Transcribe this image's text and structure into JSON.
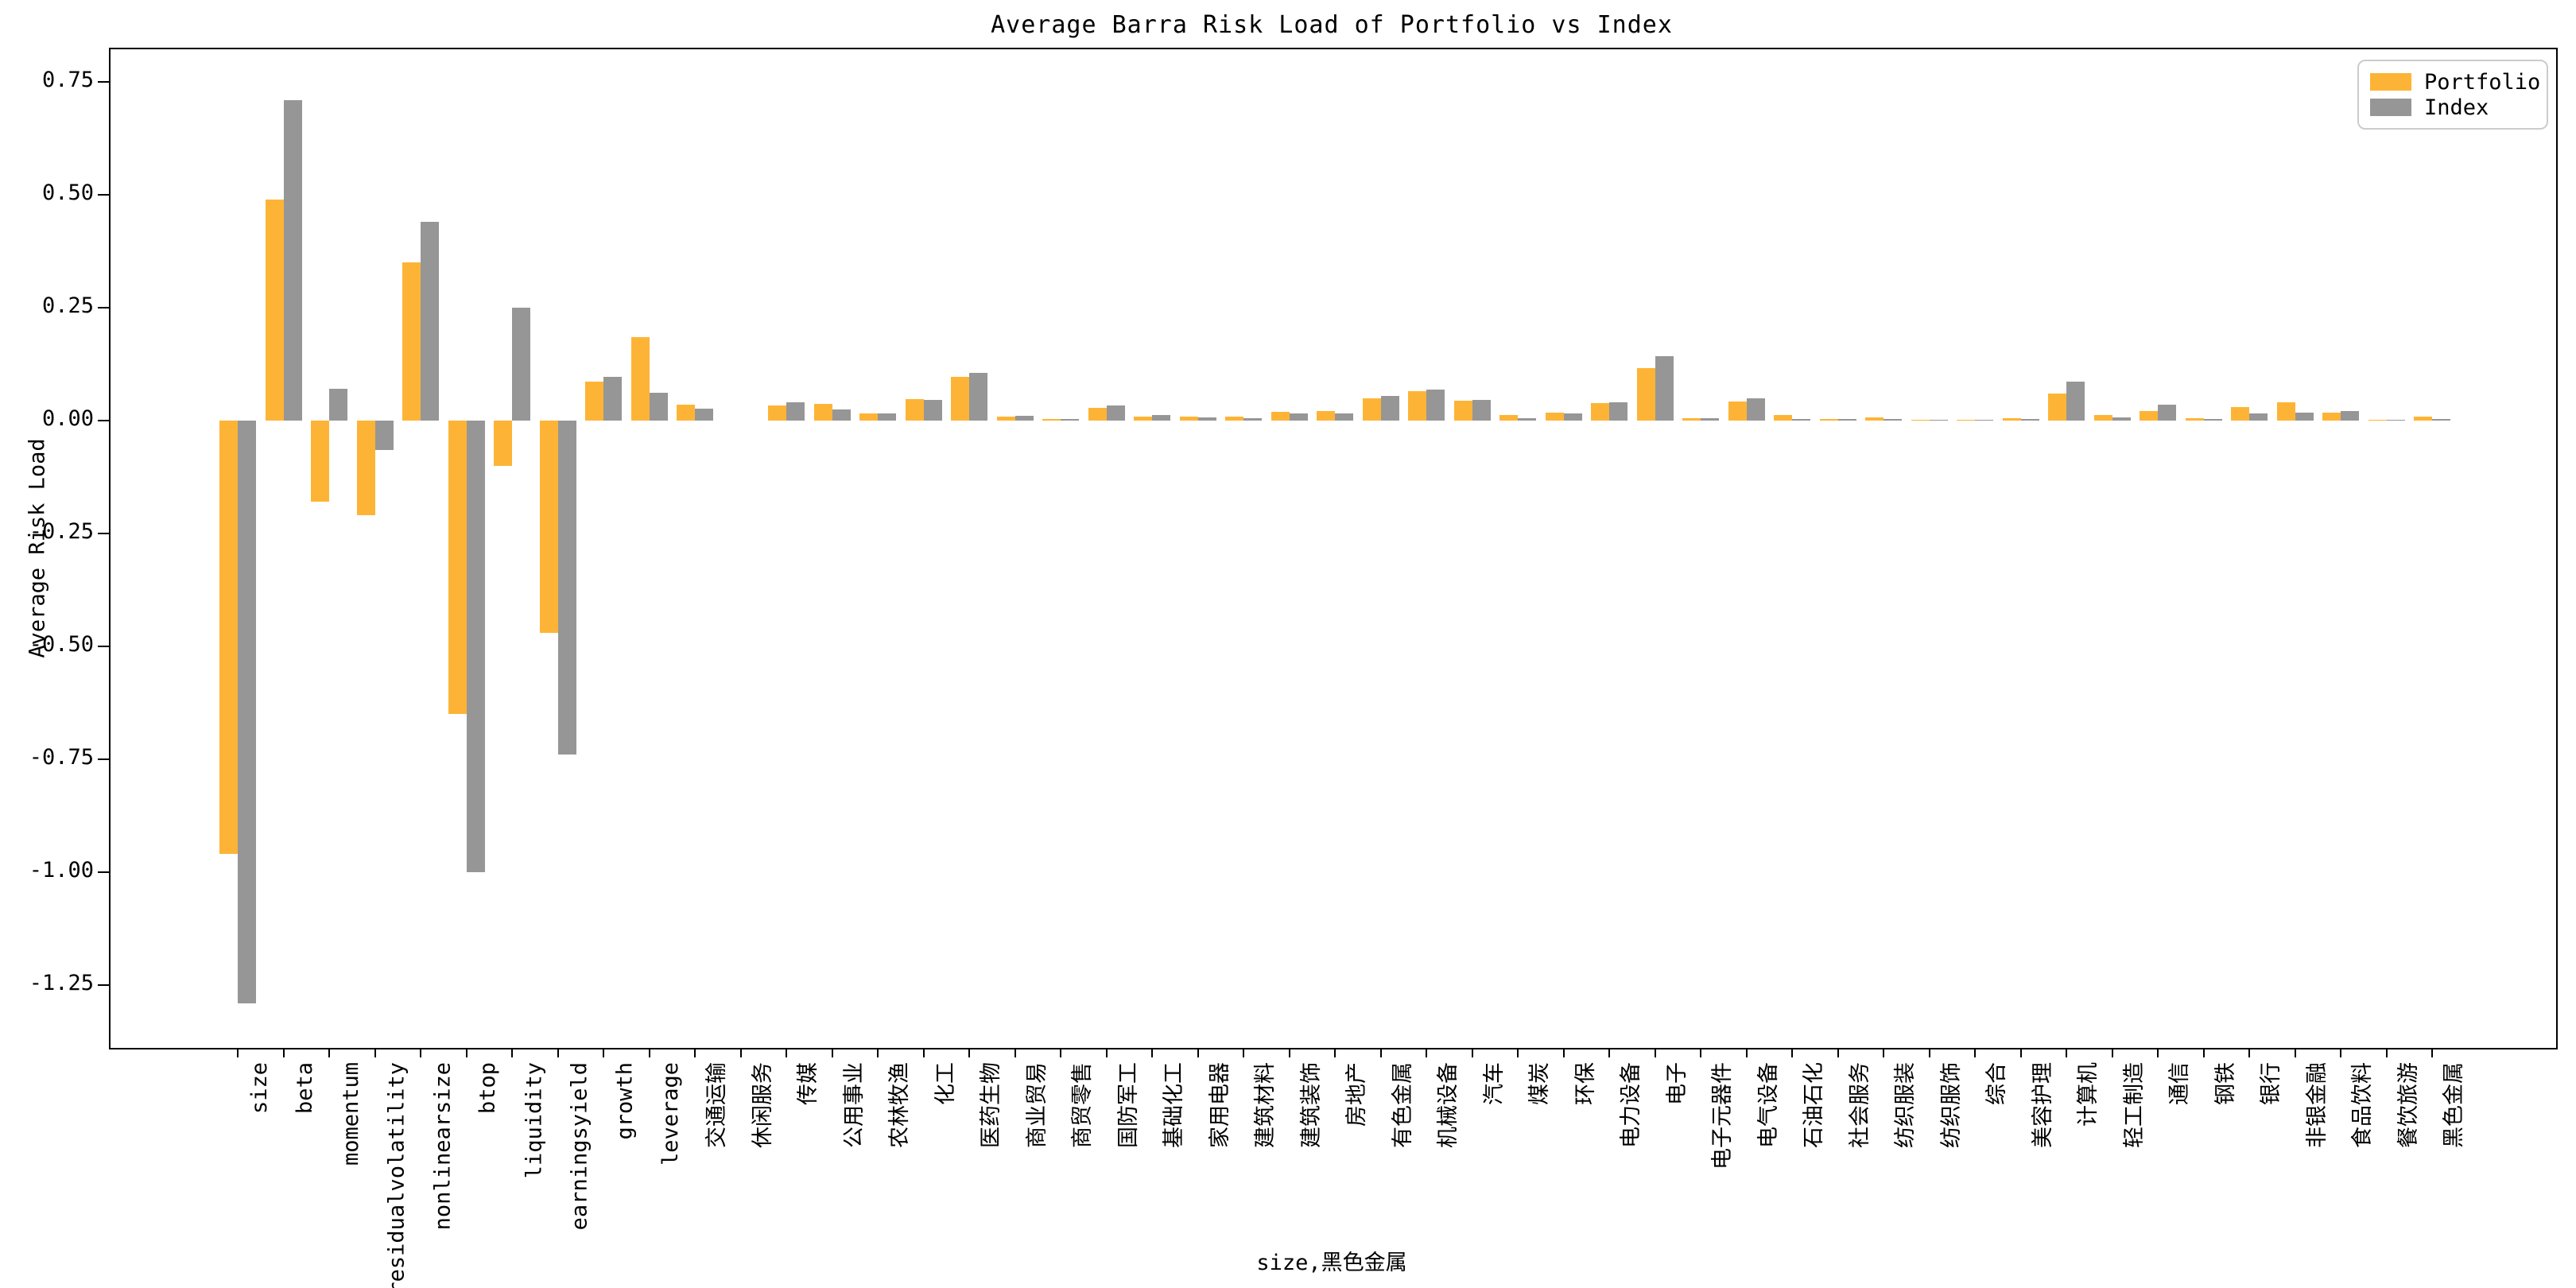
{
  "title": "Average Barra Risk Load of Portfolio vs Index",
  "colors": {
    "portfolio": "#FDB436",
    "index": "#969696",
    "axis": "#000000",
    "legend_border": "#cccccc",
    "background": "#ffffff"
  },
  "chart_data": {
    "type": "bar",
    "title": "Average Barra Risk Load of Portfolio vs Index",
    "xlabel": "size,黑色金属",
    "ylabel": "Average Risk Load",
    "ylim": [
      -1.39,
      0.82
    ],
    "yticks": [
      0.75,
      0.5,
      0.25,
      0.0,
      -0.25,
      -0.5,
      -0.75,
      -1.0,
      -1.25
    ],
    "grid": false,
    "legend_position": "upper right",
    "categories": [
      "size",
      "beta",
      "momentum",
      "residualvolatility",
      "nonlinearsize",
      "btop",
      "liquidity",
      "earningsyield",
      "growth",
      "leverage",
      "交通运输",
      "休闲服务",
      "传媒",
      "公用事业",
      "农林牧渔",
      "化工",
      "医药生物",
      "商业贸易",
      "商贸零售",
      "国防军工",
      "基础化工",
      "家用电器",
      "建筑材料",
      "建筑装饰",
      "房地产",
      "有色金属",
      "机械设备",
      "汽车",
      "煤炭",
      "环保",
      "电力设备",
      "电子",
      "电子元器件",
      "电气设备",
      "石油石化",
      "社会服务",
      "纺织服装",
      "纺织服饰",
      "综合",
      "美容护理",
      "计算机",
      "轻工制造",
      "通信",
      "钢铁",
      "银行",
      "非银金融",
      "食品饮料",
      "餐饮旅游",
      "黑色金属"
    ],
    "series": [
      {
        "name": "Portfolio",
        "color": "#FDB436",
        "values": [
          -0.96,
          0.49,
          -0.18,
          -0.21,
          0.35,
          -0.65,
          -0.1,
          -0.47,
          0.086,
          0.184,
          0.035,
          0.0,
          0.034,
          0.037,
          0.015,
          0.047,
          0.096,
          0.009,
          0.003,
          0.029,
          0.009,
          0.009,
          0.009,
          0.02,
          0.021,
          0.049,
          0.065,
          0.044,
          0.013,
          0.017,
          0.039,
          0.116,
          0.006,
          0.043,
          0.012,
          0.004,
          0.007,
          0.002,
          0.002,
          0.006,
          0.059,
          0.013,
          0.021,
          0.006,
          0.03,
          0.041,
          0.018,
          0.002,
          0.009
        ]
      },
      {
        "name": "Index",
        "color": "#969696",
        "values": [
          -1.29,
          0.71,
          0.07,
          -0.066,
          0.44,
          -1.0,
          0.25,
          -0.74,
          0.097,
          0.062,
          0.027,
          0.0,
          0.041,
          0.025,
          0.015,
          0.045,
          0.105,
          0.011,
          0.003,
          0.034,
          0.012,
          0.007,
          0.006,
          0.015,
          0.016,
          0.054,
          0.069,
          0.046,
          0.006,
          0.016,
          0.04,
          0.142,
          0.006,
          0.05,
          0.004,
          0.004,
          0.004,
          0.001,
          0.001,
          0.004,
          0.087,
          0.007,
          0.035,
          0.003,
          0.015,
          0.017,
          0.021,
          0.001,
          0.003
        ]
      }
    ]
  }
}
